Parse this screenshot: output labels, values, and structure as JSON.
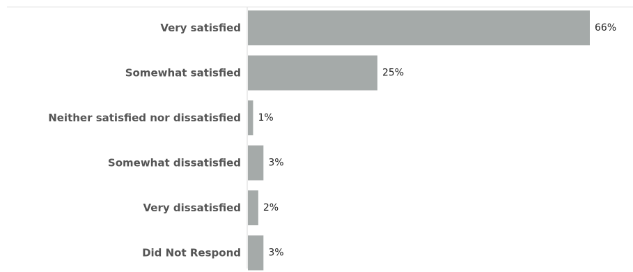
{
  "chart_data": {
    "type": "bar",
    "orientation": "horizontal",
    "categories": [
      "Very satisfied",
      "Somewhat satisfied",
      "Neither satisfied nor dissatisfied",
      "Somewhat dissatisfied",
      "Very dissatisfied",
      "Did Not Respond"
    ],
    "values": [
      66,
      25,
      1,
      3,
      2,
      3
    ],
    "value_labels": [
      "66%",
      "25%",
      "1%",
      "3%",
      "2%",
      "3%"
    ],
    "title": "",
    "xlabel": "",
    "ylabel": "",
    "xlim": [
      0,
      66
    ],
    "grid": false,
    "legend": "none",
    "bar_color": "#a5aaa9",
    "axis_color": "#d9d9d9"
  }
}
